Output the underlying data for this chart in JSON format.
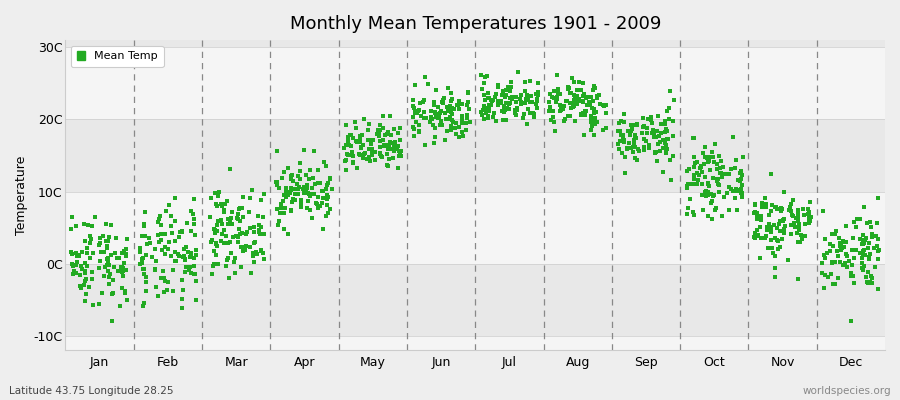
{
  "title": "Monthly Mean Temperatures 1901 - 2009",
  "ylabel": "Temperature",
  "y_ticks": [
    -10,
    0,
    10,
    20,
    30
  ],
  "y_tick_labels": [
    "-10C",
    "0C",
    "10C",
    "20C",
    "30C"
  ],
  "ylim": [
    -12,
    31
  ],
  "months": [
    "Jan",
    "Feb",
    "Mar",
    "Apr",
    "May",
    "Jun",
    "Jul",
    "Aug",
    "Sep",
    "Oct",
    "Nov",
    "Dec"
  ],
  "dot_color": "#22aa22",
  "bg_color": "#eeeeee",
  "plot_bg_light": "#f5f5f5",
  "plot_bg_dark": "#e8e8e8",
  "legend_label": "Mean Temp",
  "bottom_left": "Latitude 43.75 Longitude 28.25",
  "bottom_right": "worldspecies.org",
  "monthly_means": [
    0.5,
    0.8,
    4.5,
    10.0,
    16.0,
    20.5,
    22.5,
    22.0,
    17.5,
    11.5,
    5.5,
    1.8
  ],
  "monthly_stds": [
    3.2,
    3.5,
    2.8,
    2.2,
    1.8,
    1.8,
    1.6,
    1.8,
    2.0,
    2.2,
    2.5,
    2.8
  ],
  "n_years": 109,
  "random_seed": 42,
  "dot_size": 7,
  "title_fontsize": 13,
  "axis_fontsize": 9,
  "ylabel_fontsize": 9
}
